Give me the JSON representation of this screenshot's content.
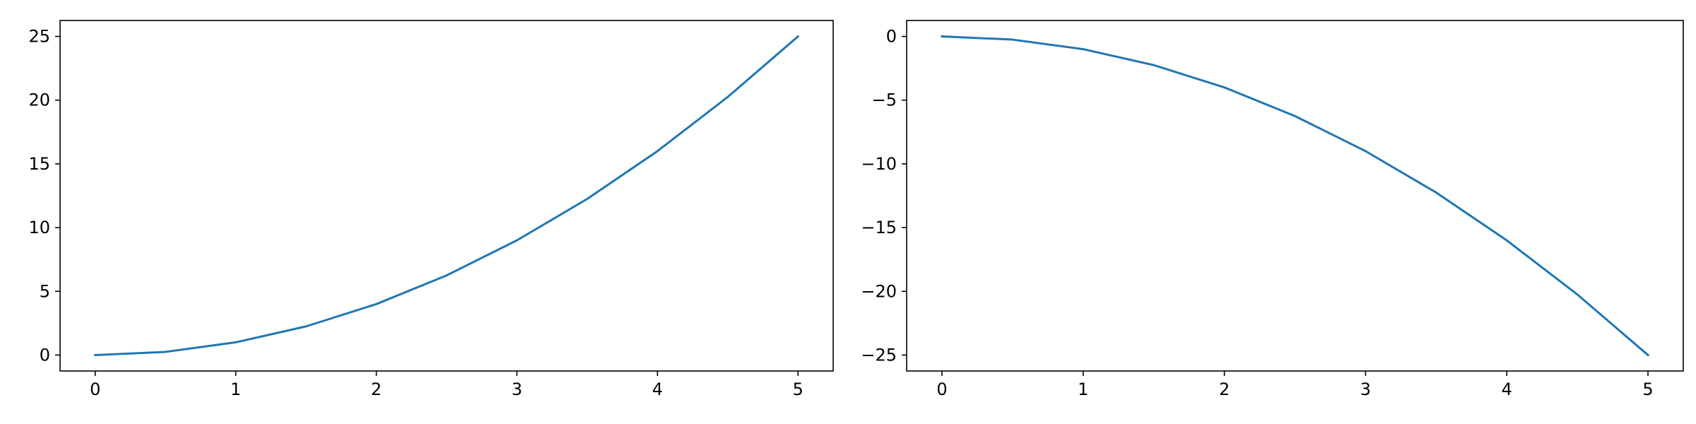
{
  "chart_data": [
    {
      "type": "line",
      "x": [
        0,
        0.5,
        1,
        1.5,
        2,
        2.5,
        3,
        3.5,
        4,
        4.5,
        5
      ],
      "series": [
        {
          "values": [
            0,
            0.25,
            1,
            2.25,
            4,
            6.25,
            9,
            12.25,
            16,
            20.25,
            25
          ]
        }
      ],
      "xlim": [
        -0.25,
        5.25
      ],
      "ylim": [
        -1.25,
        26.25
      ],
      "xticks": [
        0,
        1,
        2,
        3,
        4,
        5
      ],
      "xtick_labels": [
        "0",
        "1",
        "2",
        "3",
        "4",
        "5"
      ],
      "yticks": [
        0,
        5,
        10,
        15,
        20,
        25
      ],
      "ytick_labels": [
        "0",
        "5",
        "10",
        "15",
        "20",
        "25"
      ],
      "grid": false,
      "line_color": "#1f77b4"
    },
    {
      "type": "line",
      "x": [
        0,
        0.5,
        1,
        1.5,
        2,
        2.5,
        3,
        3.5,
        4,
        4.5,
        5
      ],
      "series": [
        {
          "values": [
            0,
            -0.25,
            -1,
            -2.25,
            -4,
            -6.25,
            -9,
            -12.25,
            -16,
            -20.25,
            -25
          ]
        }
      ],
      "xlim": [
        -0.25,
        5.25
      ],
      "ylim": [
        -26.25,
        1.25
      ],
      "xticks": [
        0,
        1,
        2,
        3,
        4,
        5
      ],
      "xtick_labels": [
        "0",
        "1",
        "2",
        "3",
        "4",
        "5"
      ],
      "yticks": [
        0,
        -5,
        -10,
        -15,
        -20,
        -25
      ],
      "ytick_labels": [
        "0",
        "−5",
        "−10",
        "−15",
        "−20",
        "−25"
      ],
      "grid": false,
      "line_color": "#1f77b4"
    }
  ]
}
